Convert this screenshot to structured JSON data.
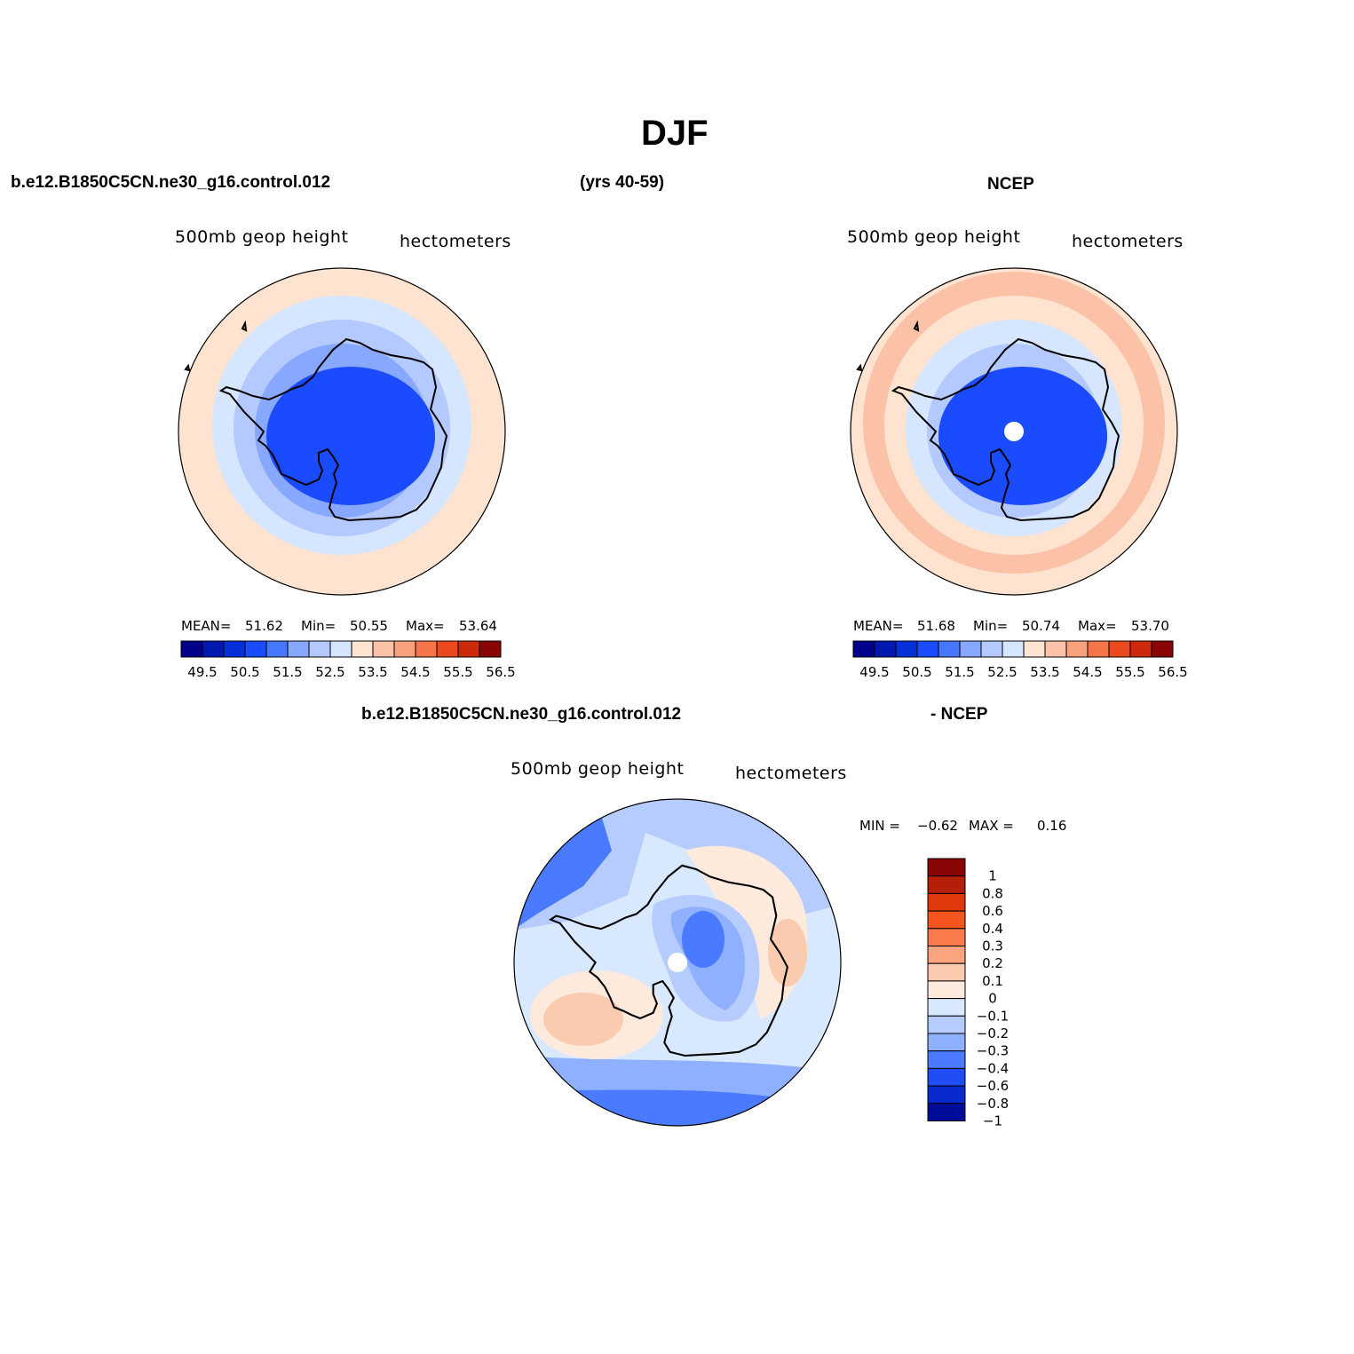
{
  "page": {
    "title": "DJF",
    "case_name": "b.e12.B1850C5CN.ne30_g16.control.012",
    "years": "(yrs 40-59)",
    "obs_name": "NCEP",
    "diff_case": "b.e12.B1850C5CN.ne30_g16.control.012",
    "diff_obs": "- NCEP"
  },
  "colors": {
    "scale": [
      "#00008a",
      "#0018b0",
      "#0530d8",
      "#1a4bff",
      "#4677ff",
      "#88a8ff",
      "#b4c9ff",
      "#d6e6ff",
      "#fde3d0",
      "#fcc2a8",
      "#f9a07c",
      "#f57548",
      "#ec4a1e",
      "#cc2a0a",
      "#8a0505"
    ]
  },
  "panels": [
    {
      "id": "model",
      "label_left": "500mb geop height",
      "label_right": "hectometers",
      "mean_label": "MEAN=",
      "mean": "51.62",
      "min_label": "Min=",
      "min": "50.55",
      "max_label": "Max=",
      "max": "53.64",
      "colorbar_ticks": [
        "49.5",
        "50.5",
        "51.5",
        "52.5",
        "53.5",
        "54.5",
        "55.5",
        "56.5"
      ],
      "bands": [
        5,
        6,
        7,
        8
      ],
      "core": 3,
      "pole_dot": false
    },
    {
      "id": "ncep",
      "label_left": "500mb geop height",
      "label_right": "hectometers",
      "mean_label": "MEAN=",
      "mean": "51.68",
      "min_label": "Min=",
      "min": "50.74",
      "max_label": "Max=",
      "max": "53.70",
      "colorbar_ticks": [
        "49.5",
        "50.5",
        "51.5",
        "52.5",
        "53.5",
        "54.5",
        "55.5",
        "56.5"
      ],
      "bands": [
        5,
        6,
        7,
        8,
        9
      ],
      "core": 3,
      "pole_dot": true
    }
  ],
  "diff": {
    "label_left": "500mb geop height",
    "label_right": "hectometers",
    "min_label": "MIN =",
    "min": "−0.62",
    "max_label": "MAX =",
    "max": "0.16",
    "colorbar_ticks": [
      "1",
      "0.8",
      "0.6",
      "0.4",
      "0.3",
      "0.2",
      "0.1",
      "0",
      "−0.1",
      "−0.2",
      "−0.3",
      "−0.4",
      "−0.6",
      "−0.8",
      "−1"
    ],
    "colorbar_colors": [
      "#8a0505",
      "#b51f08",
      "#e03a0c",
      "#f5561f",
      "#f97a4a",
      "#faa47f",
      "#fbcbb0",
      "#feeadd",
      "#d8e8ff",
      "#b6ccff",
      "#8fb0ff",
      "#4a7aff",
      "#1f4cf5",
      "#0a2ad0",
      "#000d9a"
    ]
  }
}
